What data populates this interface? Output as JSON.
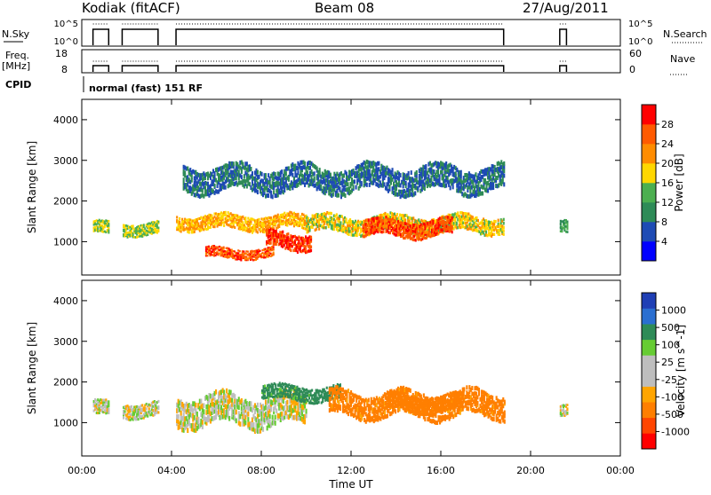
{
  "header": {
    "site": "Kodiak (fitACF)",
    "beam": "Beam 08",
    "date": "27/Aug/2011"
  },
  "strips": {
    "nsky_label": "N.Sky",
    "nsky_ticks": [
      "10^5",
      "10^0"
    ],
    "nsearch_label": "N.Search",
    "nsearch_ticks": [
      "10^5",
      "10^0"
    ],
    "freq_label_1": "Freq.",
    "freq_label_2": "[MHz]",
    "freq_ticks": [
      "18",
      "8"
    ],
    "nave_label": "Nave",
    "nave_ticks": [
      "60",
      "0"
    ],
    "cpid_label": "CPID",
    "cpid_text": "normal (fast) 151 RF"
  },
  "colors": {
    "power": [
      "#0000ff",
      "#1e4bb4",
      "#2e8b57",
      "#4caf50",
      "#ffd700",
      "#ff8c00",
      "#ff5a00",
      "#ff0000"
    ],
    "velocity": [
      "#1f3fb5",
      "#2a6fd1",
      "#2e8b57",
      "#66cc33",
      "#bebebe",
      "#bebebe",
      "#ffa500",
      "#ff7f00",
      "#ff4500",
      "#ff0000"
    ],
    "ground": "#bebebe"
  },
  "chart_data": [
    {
      "type": "heatmap",
      "title": "Power",
      "ylabel": "Slant Range [km]",
      "yticks": [
        "4000",
        "3000",
        "2000",
        "1000"
      ],
      "ylim": [
        180,
        4500
      ],
      "xlim": [
        0,
        24
      ],
      "colorbar": {
        "label": "Power [dB]",
        "ticks": [
          "28",
          "24",
          "20",
          "16",
          "12",
          "8",
          "4"
        ],
        "range": [
          0,
          30
        ]
      },
      "gaps_ut": [
        [
          1.2,
          1.8
        ],
        [
          3.4,
          4.2
        ],
        [
          18.8,
          21.3
        ],
        [
          21.6,
          24
        ]
      ],
      "bands": [
        {
          "t_start": 0.5,
          "t_end": 3.4,
          "range_center_km": 1300,
          "range_width_km": 300,
          "power_db": 16
        },
        {
          "t_start": 4.2,
          "t_end": 10.0,
          "range_center_km": 1450,
          "range_width_km": 350,
          "power_db": 20
        },
        {
          "t_start": 5.5,
          "t_end": 8.5,
          "range_center_km": 700,
          "range_width_km": 250,
          "power_db": 26
        },
        {
          "t_start": 8.2,
          "t_end": 10.2,
          "range_center_km": 1000,
          "range_width_km": 400,
          "power_db": 28
        },
        {
          "t_start": 10.0,
          "t_end": 18.8,
          "range_center_km": 1400,
          "range_width_km": 400,
          "power_db": 18
        },
        {
          "t_start": 12.5,
          "t_end": 16.5,
          "range_center_km": 1300,
          "range_width_km": 400,
          "power_db": 27
        },
        {
          "t_start": 4.5,
          "t_end": 18.8,
          "range_center_km": 2500,
          "range_width_km": 600,
          "power_db": 8
        },
        {
          "t_start": 21.3,
          "t_end": 21.6,
          "range_center_km": 1300,
          "range_width_km": 300,
          "power_db": 12
        }
      ]
    },
    {
      "type": "heatmap",
      "title": "Velocity",
      "ylabel": "Slant Range [km]",
      "xlabel": "Time UT",
      "xticks": [
        "00:00",
        "04:00",
        "08:00",
        "12:00",
        "16:00",
        "20:00",
        "00:00"
      ],
      "yticks": [
        "4000",
        "3000",
        "2000",
        "1000"
      ],
      "ylim": [
        180,
        4500
      ],
      "xlim": [
        0,
        24
      ],
      "colorbar": {
        "label": "Velocity [m s^-1]",
        "ticks": [
          "1000",
          "500",
          "100",
          "25",
          "-25",
          "-100",
          "-500",
          "-1000"
        ],
        "range": [
          -1000,
          1000
        ]
      },
      "gaps_ut": [
        [
          1.2,
          1.8
        ],
        [
          3.4,
          4.2
        ],
        [
          18.8,
          21.3
        ],
        [
          21.6,
          24
        ]
      ],
      "bands": [
        {
          "t_start": 0.5,
          "t_end": 3.4,
          "range_center_km": 1300,
          "range_width_km": 350,
          "velocity": 0
        },
        {
          "t_start": 4.2,
          "t_end": 10.0,
          "range_center_km": 1250,
          "range_width_km": 700,
          "velocity": 0
        },
        {
          "t_start": 8.0,
          "t_end": 11.5,
          "range_center_km": 1700,
          "range_width_km": 350,
          "velocity": 150
        },
        {
          "t_start": 11.0,
          "t_end": 18.8,
          "range_center_km": 1400,
          "range_width_km": 600,
          "velocity": -150
        },
        {
          "t_start": 13.5,
          "t_end": 17.0,
          "range_center_km": 1450,
          "range_width_km": 400,
          "velocity": -400
        },
        {
          "t_start": 21.3,
          "t_end": 21.6,
          "range_center_km": 1300,
          "range_width_km": 300,
          "velocity": 0
        }
      ]
    }
  ]
}
